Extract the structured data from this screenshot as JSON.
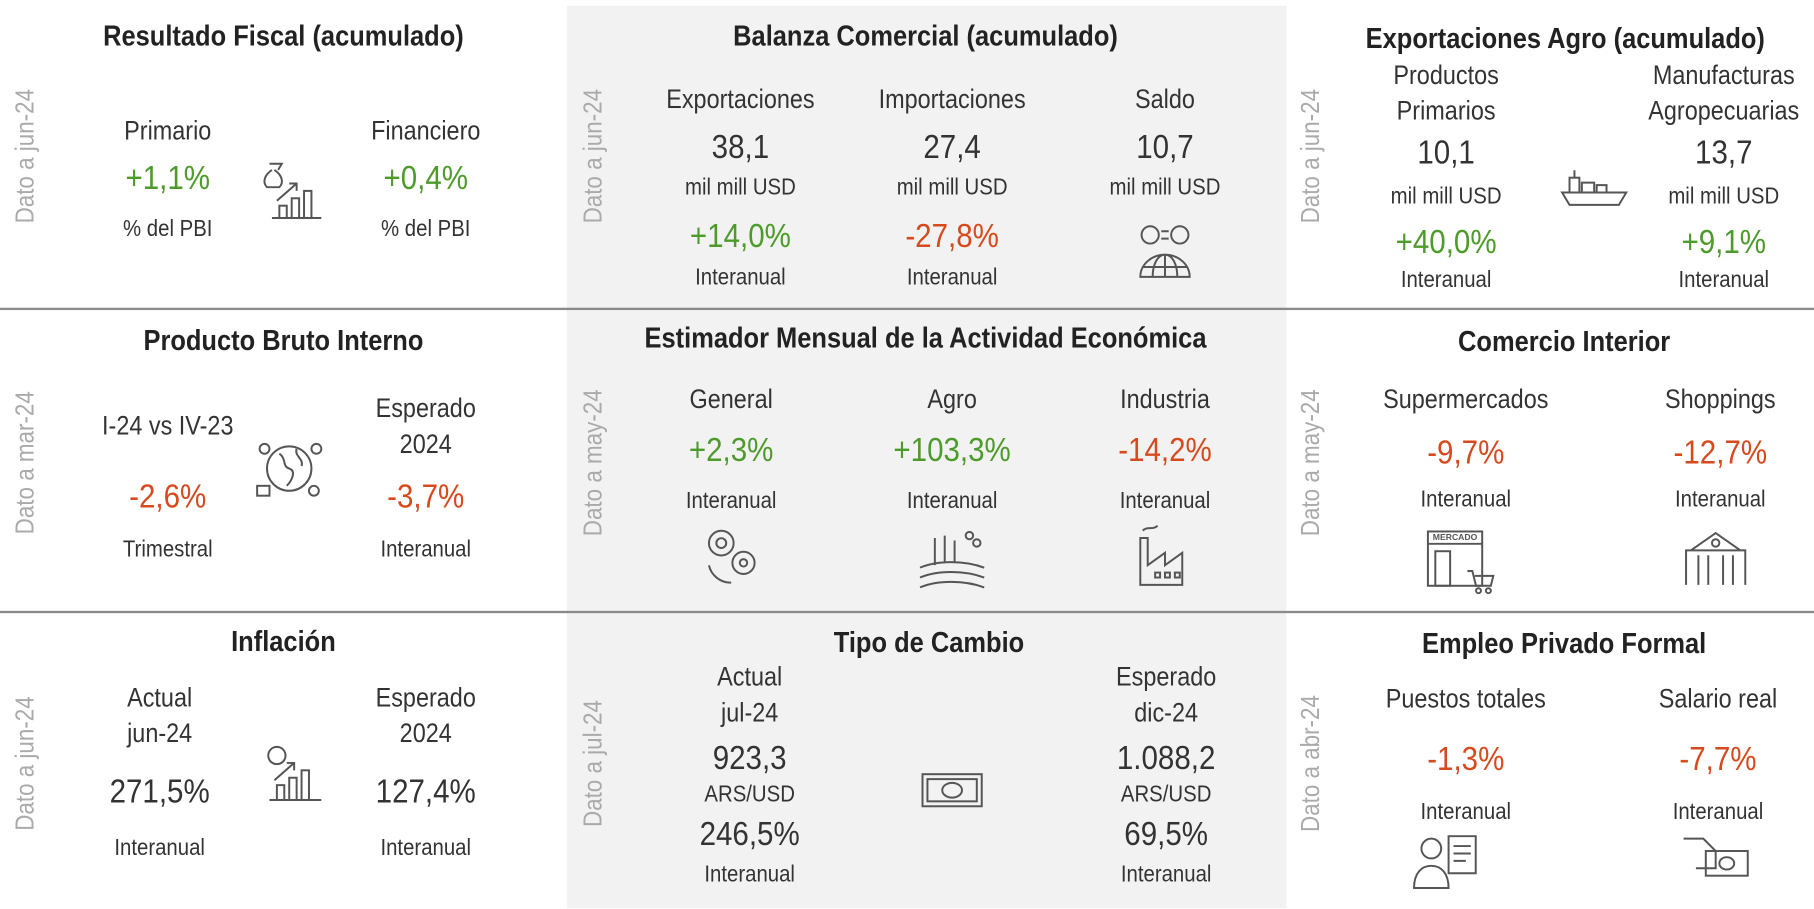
{
  "panels": [
    {
      "title": "Resultado Fiscal (acumulado)",
      "side": "Dato a jun-24",
      "columns": [
        {
          "label": [
            "Primario"
          ],
          "value": "+1,1%",
          "value_color": "#4d9b2a",
          "unit": "% del PBI"
        },
        {
          "label": [
            "Financiero"
          ],
          "value": "+0,4%",
          "value_color": "#4d9b2a",
          "unit": "% del PBI"
        }
      ]
    },
    {
      "title": "Balanza Comercial (acumulado)",
      "side": "Dato a jun-24",
      "columns": [
        {
          "label": [
            "Exportaciones"
          ],
          "value": "38,1",
          "unit": "mil mill USD",
          "change": "+14,0%",
          "change_color": "#4d9b2a",
          "note": "Interanual"
        },
        {
          "label": [
            "Importaciones"
          ],
          "value": "27,4",
          "unit": "mil mill USD",
          "change": "-27,8%",
          "change_color": "#d64a1e",
          "note": "Interanual"
        },
        {
          "label": [
            "Saldo"
          ],
          "value": "10,7",
          "unit": "mil mill USD"
        }
      ]
    },
    {
      "title": "Exportaciones Agro (acumulado)",
      "side": "Dato a jun-24",
      "columns": [
        {
          "label": [
            "Productos",
            "Primarios"
          ],
          "value": "10,1",
          "unit": "mil mill USD",
          "change": "+40,0%",
          "change_color": "#4d9b2a",
          "note": "Interanual"
        },
        {
          "label": [
            "Manufacturas",
            "Agropecuarias"
          ],
          "value": "13,7",
          "unit": "mil mill USD",
          "change": "+9,1%",
          "change_color": "#4d9b2a",
          "note": "Interanual"
        }
      ]
    },
    {
      "title": "Producto Bruto Interno",
      "side": "Dato a mar-24",
      "columns": [
        {
          "label": [
            "I-24 vs IV-23"
          ],
          "value": "-2,6%",
          "value_color": "#d64a1e",
          "note": "Trimestral"
        },
        {
          "label": [
            "Esperado",
            "2024"
          ],
          "value": "-3,7%",
          "value_color": "#d64a1e",
          "note": "Interanual"
        }
      ]
    },
    {
      "title": "Estimador Mensual de la Actividad Económica",
      "side": "Dato a may-24",
      "columns": [
        {
          "label": [
            "General"
          ],
          "value": "+2,3%",
          "value_color": "#4d9b2a",
          "note": "Interanual"
        },
        {
          "label": [
            "Agro"
          ],
          "value": "+103,3%",
          "value_color": "#4d9b2a",
          "note": "Interanual"
        },
        {
          "label": [
            "Industria"
          ],
          "value": "-14,2%",
          "value_color": "#d64a1e",
          "note": "Interanual"
        }
      ]
    },
    {
      "title": "Comercio Interior",
      "side": "Dato a may-24",
      "icon_text": "MERCADO",
      "columns": [
        {
          "label": [
            "Supermercados"
          ],
          "value": "-9,7%",
          "value_color": "#d64a1e",
          "note": "Interanual"
        },
        {
          "label": [
            "Shoppings"
          ],
          "value": "-12,7%",
          "value_color": "#d64a1e",
          "note": "Interanual"
        }
      ]
    },
    {
      "title": "Inflación",
      "side": "Dato a jun-24",
      "columns": [
        {
          "label": [
            "Actual",
            "jun-24"
          ],
          "value": "271,5%",
          "note": "Interanual"
        },
        {
          "label": [
            "Esperado",
            "2024"
          ],
          "value": "127,4%",
          "note": "Interanual"
        }
      ]
    },
    {
      "title": "Tipo de Cambio",
      "side": "Dato a jul-24",
      "columns": [
        {
          "label": [
            "Actual",
            "jul-24"
          ],
          "value": "923,3",
          "unit": "ARS/USD",
          "change": "246,5%",
          "note": "Interanual"
        },
        {
          "label": [
            "Esperado",
            "dic-24"
          ],
          "value": "1.088,2",
          "unit": "ARS/USD",
          "change": "69,5%",
          "note": "Interanual"
        }
      ]
    },
    {
      "title": "Empleo Privado Formal",
      "side": "Dato a abr-24",
      "columns": [
        {
          "label": [
            "Puestos totales"
          ],
          "value": "-1,3%",
          "value_color": "#d64a1e",
          "note": "Interanual"
        },
        {
          "label": [
            "Salario real"
          ],
          "value": "-7,7%",
          "value_color": "#d64a1e",
          "note": "Interanual"
        }
      ]
    }
  ]
}
